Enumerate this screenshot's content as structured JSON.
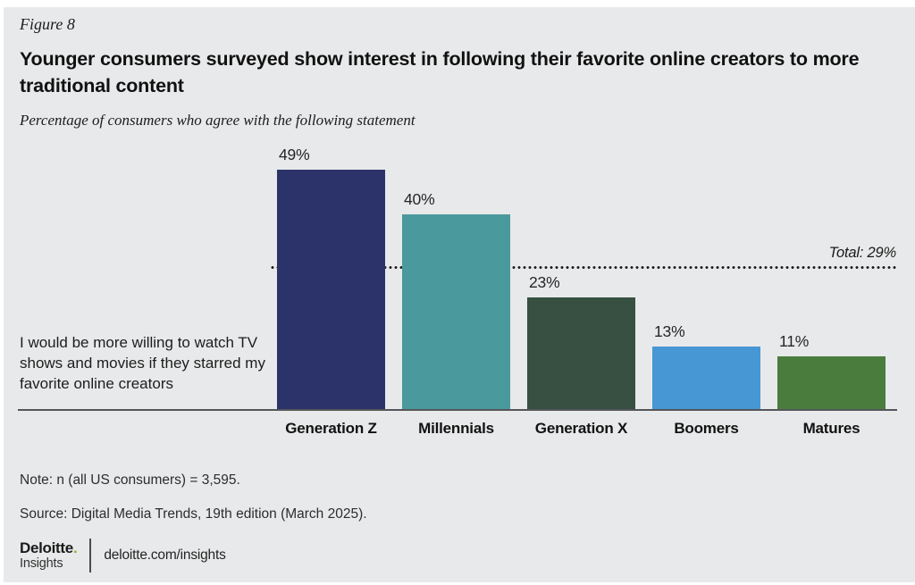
{
  "figure_label": "Figure 8",
  "title": "Younger consumers surveyed show interest in following their favorite online creators to more traditional content",
  "subtitle": "Percentage of consumers who agree with the following statement",
  "statement": "I would be more willing to watch TV shows and movies if they starred my favorite online creators",
  "chart_data": {
    "type": "bar",
    "title": "Younger consumers surveyed show interest in following their favorite online creators to more traditional content",
    "subtitle": "Percentage of consumers who agree with the following statement",
    "row_label": "I would be more willing to watch TV shows and movies if they starred my favorite online creators",
    "categories": [
      "Generation Z",
      "Millennials",
      "Generation X",
      "Boomers",
      "Matures"
    ],
    "values": [
      49,
      40,
      23,
      13,
      11
    ],
    "value_labels": [
      "49%",
      "40%",
      "23%",
      "13%",
      "11%"
    ],
    "bar_colors": [
      "#2b336a",
      "#4a9a9d",
      "#375041",
      "#4697d3",
      "#4a7c3d"
    ],
    "reference_line": {
      "label": "Total: 29%",
      "value": 29
    },
    "ylim": [
      0,
      52
    ],
    "grid": false,
    "legend": false
  },
  "note": "Note: n (all US consumers) = 3,595.",
  "source": "Source: Digital Media Trends, 19th edition (March 2025).",
  "footer": {
    "brand_word": "Deloitte",
    "brand_period": ".",
    "brand_sub": "Insights",
    "link": "deloitte.com/insights"
  },
  "colors": {
    "background": "#e8e9ea",
    "axis_line": "#54565a",
    "dotted_line": "#1b1b1b",
    "brand_green": "#86bc25",
    "text": "#111111"
  }
}
